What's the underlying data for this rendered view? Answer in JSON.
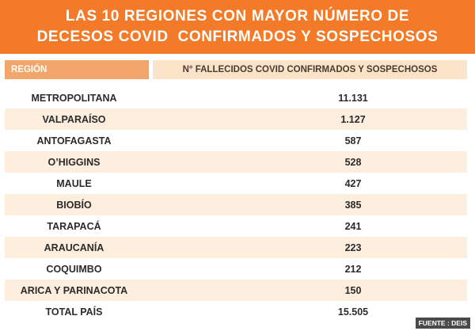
{
  "title": {
    "line1": "LAS 10 REGIONES CON MAYOR NÚMERO DE",
    "line2": "DECESOS COVID  CONFIRMADOS Y SOSPECHOSOS"
  },
  "table": {
    "headers": {
      "region": "REGIÓN",
      "deaths": "N° FALLECIDOS COVID CONFIRMADOS Y SOSPECHOSOS"
    },
    "rows": [
      {
        "region": "METROPOLITANA",
        "value": "11.131"
      },
      {
        "region": "VALPARAÍSO",
        "value": "1.127"
      },
      {
        "region": "ANTOFAGASTA",
        "value": "587"
      },
      {
        "region": "O’HIGGINS",
        "value": "528"
      },
      {
        "region": "MAULE",
        "value": "427"
      },
      {
        "region": "BIOBÍO",
        "value": "385"
      },
      {
        "region": "TARAPACÁ",
        "value": "241"
      },
      {
        "region": "ARAUCANÍA",
        "value": "223"
      },
      {
        "region": "COQUIMBO",
        "value": "212"
      },
      {
        "region": "ARICA Y PARINACOTA",
        "value": "150"
      },
      {
        "region": "TOTAL PAÍS",
        "value": "15.505"
      }
    ]
  },
  "source": "FUENTE : DEIS",
  "colors": {
    "banner": "#f27a28",
    "header_region": "#f3a66b",
    "header_deaths": "#fbe3c8",
    "row_alt": "#fdeede"
  }
}
